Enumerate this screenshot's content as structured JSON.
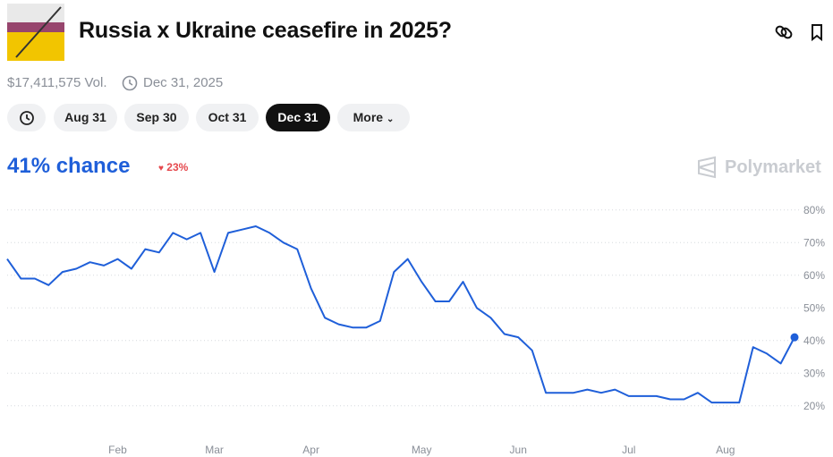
{
  "header": {
    "title": "Russia x Ukraine ceasefire in 2025?",
    "volume": "$17,411,575 Vol.",
    "end_date": "Dec 31, 2025"
  },
  "filters": [
    "Aug 31",
    "Sep 30",
    "Oct 31",
    "Dec 31",
    "More"
  ],
  "summary": {
    "chance": "41% chance",
    "change": "23%",
    "brand": "Polymarket"
  },
  "chart_data": {
    "type": "line",
    "color": "#1f5fd9",
    "grid": true,
    "categories": [
      null,
      null,
      null,
      null,
      null,
      null,
      null,
      null,
      "Feb",
      null,
      null,
      null,
      null,
      null,
      null,
      "Mar",
      null,
      null,
      null,
      null,
      null,
      null,
      "Apr",
      null,
      null,
      null,
      null,
      null,
      null,
      null,
      "May",
      null,
      null,
      null,
      null,
      null,
      null,
      "Jun",
      null,
      null,
      null,
      null,
      null,
      null,
      null,
      "Jul",
      null,
      null,
      null,
      null,
      null,
      null,
      "Aug",
      null,
      null,
      null,
      null,
      null
    ],
    "values": [
      65,
      59,
      59,
      57,
      61,
      62,
      64,
      63,
      65,
      62,
      68,
      67,
      73,
      71,
      73,
      61,
      73,
      74,
      75,
      73,
      70,
      68,
      56,
      47,
      45,
      44,
      44,
      46,
      61,
      65,
      58,
      52,
      52,
      58,
      50,
      47,
      42,
      41,
      37,
      24,
      24,
      24,
      25,
      24,
      25,
      23,
      23,
      23,
      22,
      22,
      24,
      21,
      21,
      21,
      38,
      36,
      33,
      41
    ],
    "ylim": [
      12,
      82
    ],
    "yticks": [
      {
        "value": 20,
        "label": "20%"
      },
      {
        "value": 30,
        "label": "30%"
      },
      {
        "value": 40,
        "label": "40%"
      },
      {
        "value": 50,
        "label": "50%"
      },
      {
        "value": 60,
        "label": "60%"
      },
      {
        "value": 70,
        "label": "70%"
      },
      {
        "value": 80,
        "label": "80%"
      }
    ]
  }
}
